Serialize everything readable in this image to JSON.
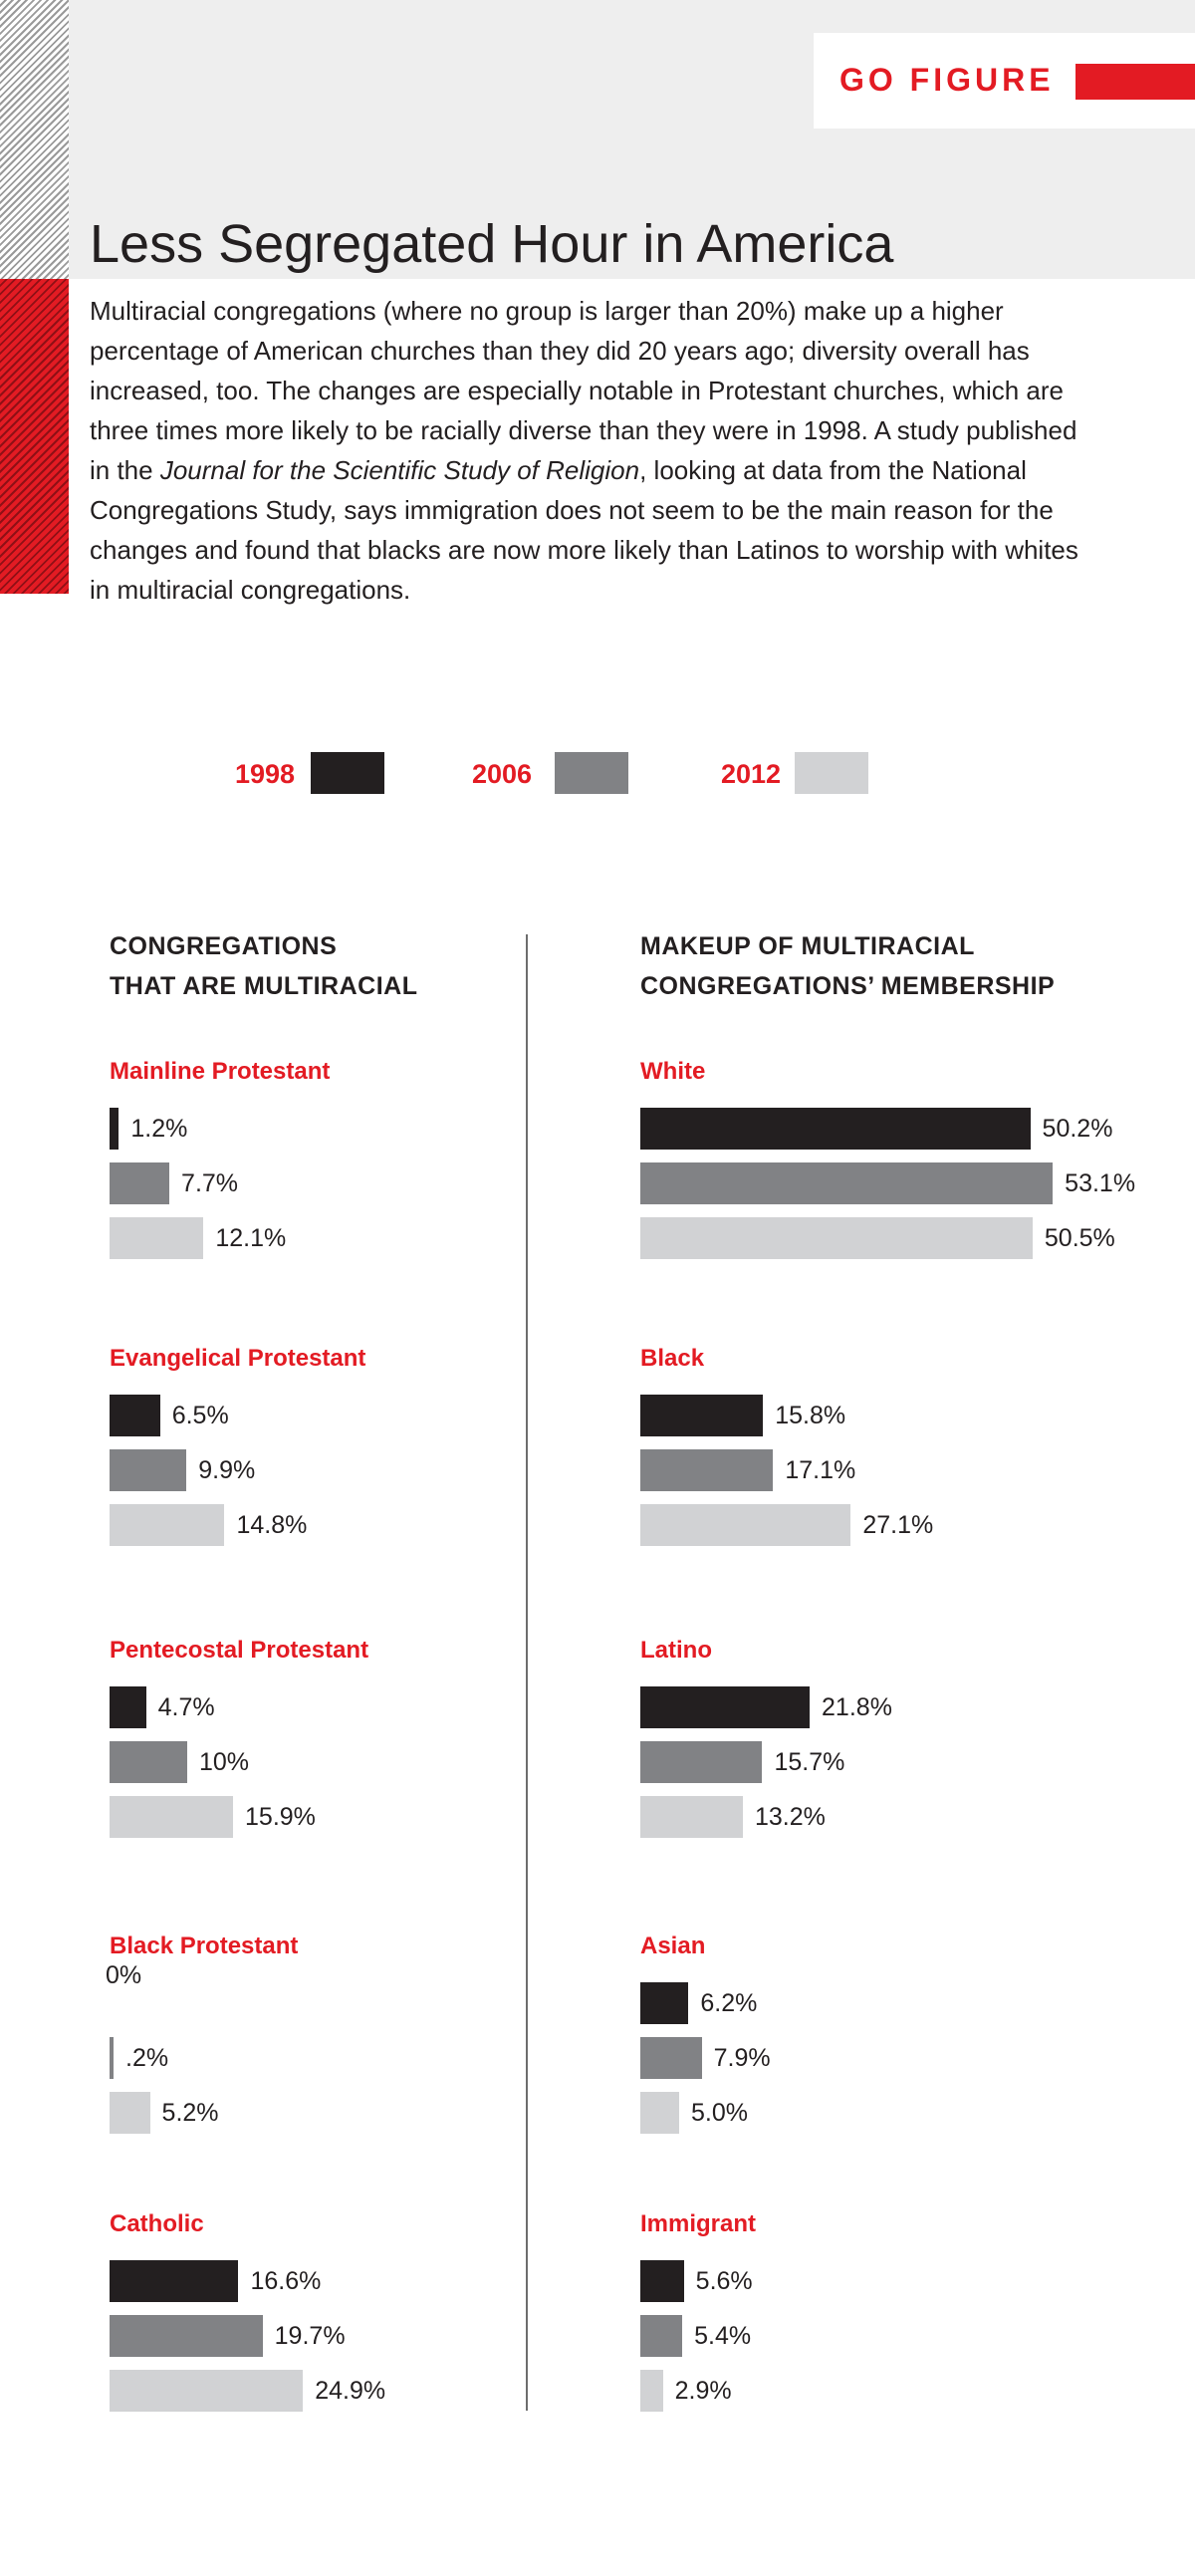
{
  "header": {
    "badge": "GO FIGURE",
    "title": "Less Segregated Hour in America",
    "intro_1": "Multiracial congregations (where no group is larger than 20%) make up a higher percentage of American churches than they did 20 years ago; diversity overall has increased, too. The changes are especially notable in Protestant churches, which are three times more likely to be racially diverse than they were in 1998. A study published in the ",
    "intro_italic": "Journal for the Scientific Study of Religion",
    "intro_2": ", looking at data from the National Congregations Study, says immigration does not seem to be the main reason for the changes and found that blacks are now more likely than Latinos to worship with whites in multiracial congregations."
  },
  "colors": {
    "accent": "#e31b23",
    "y1998": "#231f20",
    "y2006": "#818285",
    "y2012": "#d1d2d4"
  },
  "legend": [
    "1998",
    "2006",
    "2012"
  ],
  "chart_data": [
    {
      "type": "bar",
      "orientation": "horizontal",
      "title": "CONGREGATIONS THAT ARE MULTIRACIAL",
      "title_lines": [
        "CONGREGATIONS",
        "THAT ARE MULTIRACIAL"
      ],
      "series_names": [
        "1998",
        "2006",
        "2012"
      ],
      "groups": [
        {
          "name": "Mainline Protestant",
          "values": [
            1.2,
            7.7,
            12.1
          ],
          "labels": [
            "1.2%",
            "7.7%",
            "12.1%"
          ]
        },
        {
          "name": "Evangelical Protestant",
          "values": [
            6.5,
            9.9,
            14.8
          ],
          "labels": [
            "6.5%",
            "9.9%",
            "14.8%"
          ]
        },
        {
          "name": "Pentecostal Protestant",
          "values": [
            4.7,
            10,
            15.9
          ],
          "labels": [
            "4.7%",
            "10%",
            "15.9%"
          ]
        },
        {
          "name": "Black Protestant",
          "values": [
            0,
            0.2,
            5.2
          ],
          "labels": [
            "0%",
            ".2%",
            "5.2%"
          ]
        },
        {
          "name": "Catholic",
          "values": [
            16.6,
            19.7,
            24.9
          ],
          "labels": [
            "16.6%",
            "19.7%",
            "24.9%"
          ]
        }
      ]
    },
    {
      "type": "bar",
      "orientation": "horizontal",
      "title": "MAKEUP OF MULTIRACIAL CONGREGATIONS’ MEMBERSHIP",
      "title_lines": [
        "MAKEUP OF MULTIRACIAL",
        "CONGREGATIONS’ MEMBERSHIP"
      ],
      "series_names": [
        "1998",
        "2006",
        "2012"
      ],
      "groups": [
        {
          "name": "White",
          "values": [
            50.2,
            53.1,
            50.5
          ],
          "labels": [
            "50.2%",
            "53.1%",
            "50.5%"
          ]
        },
        {
          "name": "Black",
          "values": [
            15.8,
            17.1,
            27.1
          ],
          "labels": [
            "15.8%",
            "17.1%",
            "27.1%"
          ]
        },
        {
          "name": "Latino",
          "values": [
            21.8,
            15.7,
            13.2
          ],
          "labels": [
            "21.8%",
            "15.7%",
            "13.2%"
          ]
        },
        {
          "name": "Asian",
          "values": [
            6.2,
            7.9,
            5.0
          ],
          "labels": [
            "6.2%",
            "7.9%",
            "5.0%"
          ]
        },
        {
          "name": "Immigrant",
          "values": [
            5.6,
            5.4,
            2.9
          ],
          "labels": [
            "5.6%",
            "5.4%",
            "2.9%"
          ]
        }
      ]
    }
  ]
}
